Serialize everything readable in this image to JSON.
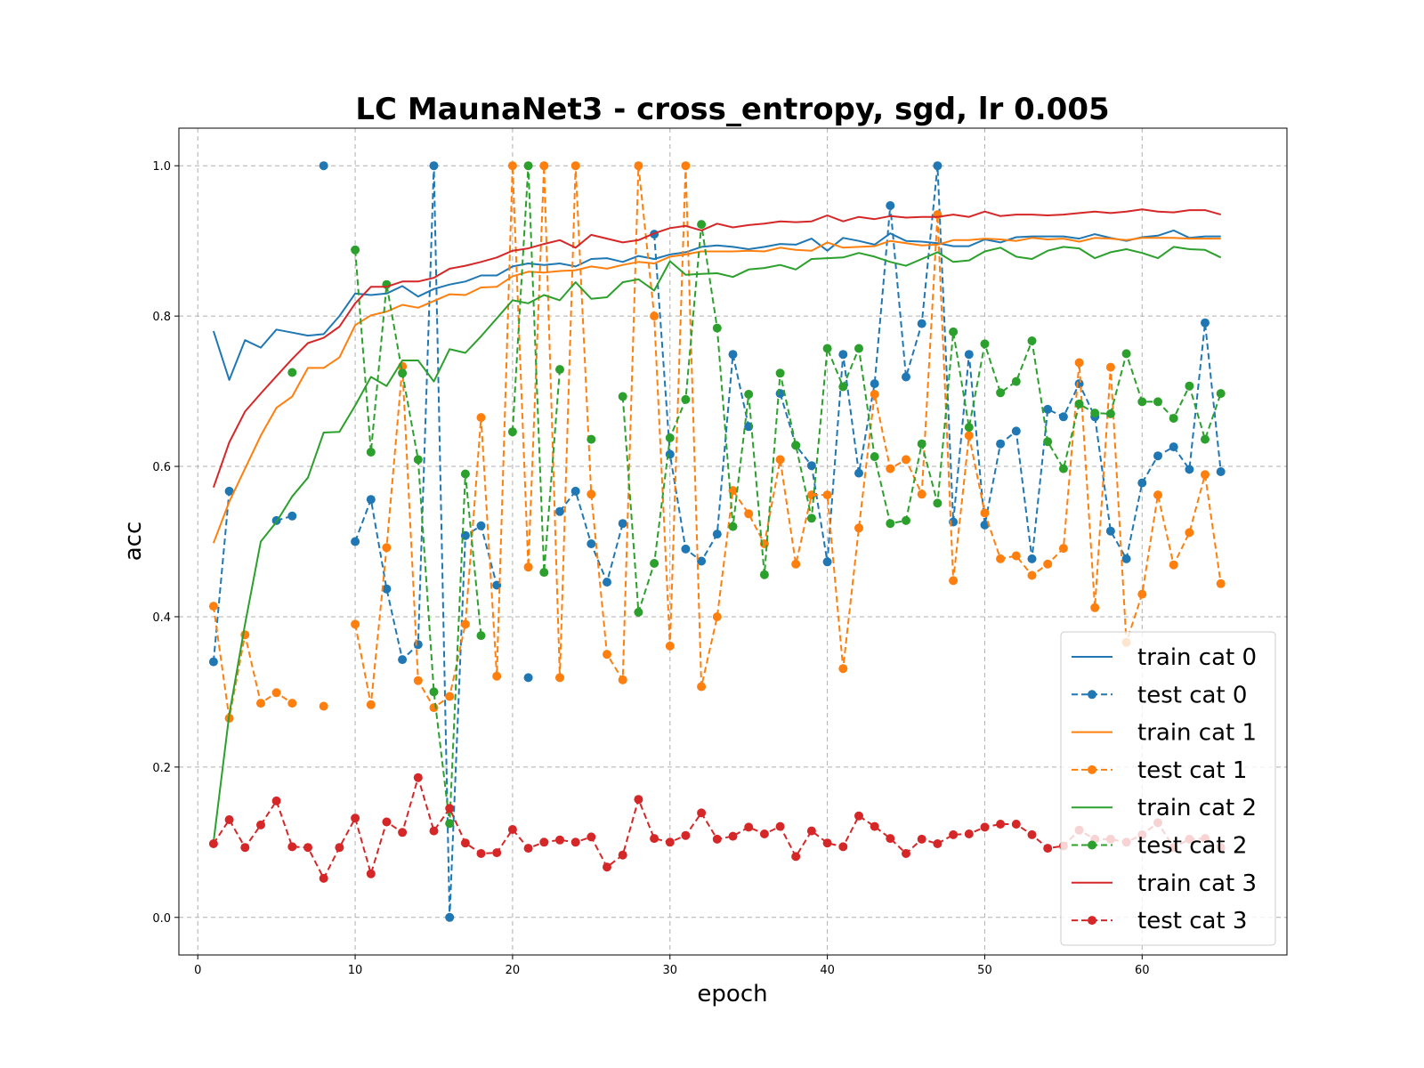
{
  "chart_data": {
    "type": "line",
    "title": "LC MaunaNet3 - cross_entropy, sgd, lr 0.005",
    "xlabel": "epoch",
    "ylabel": "acc",
    "xlim": [
      -1.2,
      69.2
    ],
    "ylim": [
      -0.05,
      1.05
    ],
    "xticks": [
      0,
      10,
      20,
      30,
      40,
      50,
      60
    ],
    "yticks": [
      0.0,
      0.2,
      0.4,
      0.6,
      0.8,
      1.0
    ],
    "xtick_labels": [
      "0",
      "10",
      "20",
      "30",
      "40",
      "50",
      "60"
    ],
    "ytick_labels": [
      "0.0",
      "0.2",
      "0.4",
      "0.6",
      "0.8",
      "1.0"
    ],
    "grid": true,
    "legend_position": "lower-right",
    "x": [
      1,
      2,
      3,
      4,
      5,
      6,
      7,
      8,
      9,
      10,
      11,
      12,
      13,
      14,
      15,
      16,
      17,
      18,
      19,
      20,
      21,
      22,
      23,
      24,
      25,
      26,
      27,
      28,
      29,
      30,
      31,
      32,
      33,
      34,
      35,
      36,
      37,
      38,
      39,
      40,
      41,
      42,
      43,
      44,
      45,
      46,
      47,
      48,
      49,
      50,
      51,
      52,
      53,
      54,
      55,
      56,
      57,
      58,
      59,
      60,
      61,
      62,
      63,
      64,
      65
    ],
    "series": [
      {
        "name": "train cat 0",
        "color": "#1f77b4",
        "style": "solid",
        "markers": false,
        "values": [
          0.78,
          0.715,
          0.768,
          0.758,
          0.782,
          0.778,
          0.774,
          0.776,
          0.8,
          0.83,
          0.828,
          0.83,
          0.84,
          0.826,
          0.836,
          0.842,
          0.846,
          0.854,
          0.854,
          0.866,
          0.87,
          0.868,
          0.87,
          0.866,
          0.876,
          0.877,
          0.872,
          0.88,
          0.876,
          0.882,
          0.885,
          0.892,
          0.894,
          0.892,
          0.889,
          0.892,
          0.896,
          0.895,
          0.903,
          0.887,
          0.904,
          0.9,
          0.895,
          0.91,
          0.9,
          0.899,
          0.897,
          0.893,
          0.893,
          0.902,
          0.898,
          0.905,
          0.906,
          0.906,
          0.906,
          0.903,
          0.909,
          0.904,
          0.9,
          0.905,
          0.907,
          0.914,
          0.904,
          0.906,
          0.906
        ]
      },
      {
        "name": "test cat 0",
        "color": "#1f77b4",
        "style": "dashed",
        "markers": true,
        "values": [
          0.34,
          0.567,
          null,
          null,
          0.528,
          0.534,
          null,
          1.0,
          null,
          0.5,
          0.556,
          0.437,
          0.343,
          0.363,
          1.0,
          0.0,
          0.508,
          0.521,
          0.442,
          null,
          0.319,
          null,
          0.54,
          0.567,
          0.497,
          0.446,
          0.524,
          null,
          0.909,
          0.616,
          0.49,
          0.474,
          0.51,
          0.749,
          0.653,
          null,
          0.697,
          0.628,
          0.601,
          0.473,
          0.749,
          0.591,
          0.71,
          0.947,
          0.719,
          0.79,
          1.0,
          0.526,
          0.749,
          0.522,
          0.63,
          0.647,
          0.477,
          0.676,
          0.666,
          0.71,
          0.666,
          0.514,
          0.477,
          0.578,
          0.614,
          0.626,
          0.596,
          0.791,
          0.593
        ]
      },
      {
        "name": "train cat 1",
        "color": "#ff7f0e",
        "style": "solid",
        "markers": false,
        "values": [
          0.498,
          0.553,
          0.597,
          0.641,
          0.678,
          0.693,
          0.731,
          0.731,
          0.745,
          0.788,
          0.801,
          0.806,
          0.815,
          0.811,
          0.82,
          0.829,
          0.828,
          0.838,
          0.839,
          0.853,
          0.859,
          0.858,
          0.86,
          0.861,
          0.866,
          0.863,
          0.868,
          0.872,
          0.87,
          0.879,
          0.882,
          0.886,
          0.886,
          0.886,
          0.887,
          0.886,
          0.891,
          0.888,
          0.887,
          0.898,
          0.891,
          0.892,
          0.893,
          0.9,
          0.897,
          0.894,
          0.895,
          0.901,
          0.901,
          0.903,
          0.902,
          0.9,
          0.904,
          0.902,
          0.903,
          0.899,
          0.904,
          0.903,
          0.901,
          0.904,
          0.904,
          0.904,
          0.903,
          0.903,
          0.903
        ]
      },
      {
        "name": "test cat 1",
        "color": "#ff7f0e",
        "style": "dashed",
        "markers": true,
        "values": [
          0.414,
          0.265,
          0.376,
          0.285,
          0.299,
          0.285,
          null,
          0.281,
          null,
          0.39,
          0.283,
          0.492,
          0.733,
          0.315,
          0.279,
          0.294,
          0.39,
          0.665,
          0.321,
          1.0,
          0.466,
          1.0,
          0.319,
          1.0,
          0.563,
          0.35,
          0.316,
          1.0,
          0.8,
          0.361,
          1.0,
          0.307,
          0.4,
          0.568,
          0.537,
          0.497,
          0.609,
          0.47,
          0.562,
          0.562,
          0.331,
          0.518,
          0.696,
          0.597,
          0.609,
          0.563,
          0.935,
          0.448,
          0.641,
          0.538,
          0.477,
          0.481,
          0.455,
          0.47,
          0.491,
          0.738,
          0.412,
          0.732,
          0.366,
          0.43,
          0.562,
          0.469,
          0.512,
          0.589,
          0.444
        ]
      },
      {
        "name": "train cat 2",
        "color": "#2ca02c",
        "style": "solid",
        "markers": false,
        "values": [
          0.1,
          0.27,
          0.39,
          0.5,
          0.526,
          0.56,
          0.585,
          0.645,
          0.646,
          0.681,
          0.719,
          0.707,
          0.741,
          0.741,
          0.713,
          0.756,
          0.751,
          0.773,
          0.797,
          0.821,
          0.817,
          0.828,
          0.821,
          0.845,
          0.823,
          0.825,
          0.845,
          0.849,
          0.834,
          0.873,
          0.855,
          0.856,
          0.857,
          0.852,
          0.862,
          0.864,
          0.868,
          0.862,
          0.876,
          0.877,
          0.878,
          0.884,
          0.879,
          0.872,
          0.867,
          0.876,
          0.885,
          0.872,
          0.874,
          0.886,
          0.891,
          0.879,
          0.876,
          0.887,
          0.892,
          0.89,
          0.877,
          0.885,
          0.889,
          0.884,
          0.877,
          0.892,
          0.889,
          0.888,
          0.878
        ]
      },
      {
        "name": "test cat 2",
        "color": "#2ca02c",
        "style": "dashed",
        "markers": true,
        "values": [
          null,
          null,
          null,
          null,
          null,
          0.725,
          null,
          null,
          null,
          0.888,
          0.619,
          0.842,
          0.724,
          0.609,
          0.3,
          0.125,
          0.59,
          0.375,
          null,
          0.646,
          1.0,
          0.459,
          0.729,
          null,
          0.636,
          null,
          0.693,
          0.406,
          0.471,
          0.638,
          0.689,
          0.922,
          0.784,
          0.52,
          0.696,
          0.456,
          0.724,
          0.628,
          0.531,
          0.757,
          0.706,
          0.757,
          0.613,
          0.524,
          0.528,
          0.63,
          0.551,
          0.779,
          0.652,
          0.763,
          0.698,
          0.713,
          0.767,
          0.633,
          0.597,
          0.683,
          0.671,
          0.67,
          0.75,
          0.686,
          0.686,
          0.664,
          0.707,
          0.636,
          0.697
        ]
      },
      {
        "name": "train cat 3",
        "color": "#d62728",
        "style": "solid",
        "markers": false,
        "values": [
          0.572,
          0.632,
          0.673,
          0.697,
          0.72,
          0.743,
          0.764,
          0.771,
          0.786,
          0.817,
          0.839,
          0.839,
          0.846,
          0.846,
          0.851,
          0.863,
          0.867,
          0.872,
          0.878,
          0.887,
          0.89,
          0.896,
          0.901,
          0.891,
          0.908,
          0.903,
          0.898,
          0.901,
          0.91,
          0.917,
          0.92,
          0.914,
          0.923,
          0.918,
          0.921,
          0.923,
          0.926,
          0.925,
          0.926,
          0.934,
          0.926,
          0.932,
          0.929,
          0.933,
          0.931,
          0.932,
          0.932,
          0.935,
          0.932,
          0.939,
          0.933,
          0.935,
          0.935,
          0.934,
          0.935,
          0.937,
          0.939,
          0.937,
          0.939,
          0.942,
          0.939,
          0.938,
          0.941,
          0.941,
          0.935
        ]
      },
      {
        "name": "test cat 3",
        "color": "#d62728",
        "style": "dashed",
        "markers": true,
        "values": [
          0.098,
          0.13,
          0.093,
          0.123,
          0.155,
          0.094,
          0.093,
          0.052,
          0.093,
          0.132,
          0.058,
          0.127,
          0.113,
          0.186,
          0.115,
          0.145,
          0.099,
          0.085,
          0.086,
          0.117,
          0.092,
          0.1,
          0.103,
          0.1,
          0.107,
          0.067,
          0.083,
          0.157,
          0.105,
          0.1,
          0.109,
          0.139,
          0.104,
          0.108,
          0.12,
          0.111,
          0.121,
          0.081,
          0.115,
          0.099,
          0.094,
          0.135,
          0.121,
          0.105,
          0.085,
          0.104,
          0.098,
          0.11,
          0.111,
          0.12,
          0.124,
          0.124,
          0.11,
          0.092,
          0.095,
          0.116,
          0.104,
          0.104,
          0.1,
          0.11,
          0.126,
          0.093,
          0.104,
          0.105,
          0.093
        ]
      }
    ]
  }
}
